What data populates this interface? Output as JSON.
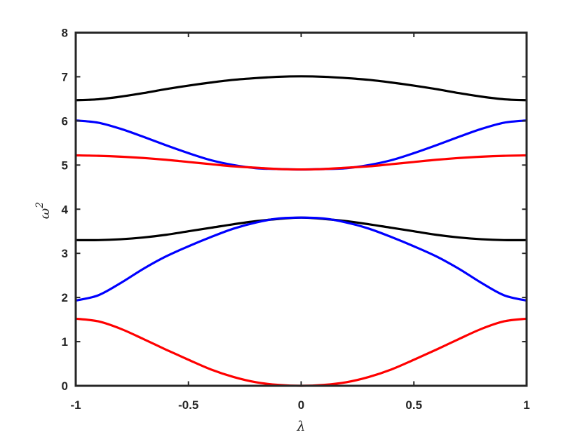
{
  "chart_data": {
    "type": "line",
    "title": "",
    "xlabel": "λ",
    "ylabel": "ω",
    "ylabel_superscript": "2",
    "xlim": [
      -1,
      1
    ],
    "ylim": [
      0,
      8
    ],
    "x_ticks": [
      -1,
      -0.5,
      0,
      0.5,
      1
    ],
    "x_tick_labels": [
      "-1",
      "-0.5",
      "0",
      "0.5",
      "1"
    ],
    "y_ticks": [
      0,
      1,
      2,
      3,
      4,
      5,
      6,
      7,
      8
    ],
    "y_tick_labels": [
      "0",
      "1",
      "2",
      "3",
      "4",
      "5",
      "6",
      "7",
      "8"
    ],
    "grid": false,
    "legend": "none",
    "x": [
      -1,
      -0.9,
      -0.8,
      -0.7,
      -0.6,
      -0.5,
      -0.4,
      -0.3,
      -0.2,
      -0.1,
      0,
      0.1,
      0.2,
      0.3,
      0.4,
      0.5,
      0.6,
      0.7,
      0.8,
      0.9,
      1
    ],
    "series": [
      {
        "color": "#000000",
        "values": [
          6.47,
          6.49,
          6.55,
          6.63,
          6.72,
          6.8,
          6.87,
          6.93,
          6.97,
          7.0,
          7.01,
          7.0,
          6.97,
          6.93,
          6.87,
          6.8,
          6.72,
          6.63,
          6.55,
          6.49,
          6.47
        ]
      },
      {
        "color": "#0000ff",
        "values": [
          6.01,
          5.96,
          5.82,
          5.64,
          5.45,
          5.27,
          5.11,
          5.0,
          4.93,
          4.91,
          4.9,
          4.91,
          4.93,
          5.0,
          5.11,
          5.27,
          5.45,
          5.64,
          5.82,
          5.96,
          6.01
        ]
      },
      {
        "color": "#ff0000",
        "values": [
          5.22,
          5.21,
          5.19,
          5.16,
          5.12,
          5.07,
          5.02,
          4.97,
          4.94,
          4.91,
          4.9,
          4.91,
          4.94,
          4.97,
          5.02,
          5.07,
          5.12,
          5.16,
          5.19,
          5.21,
          5.22
        ]
      },
      {
        "color": "#000000",
        "values": [
          3.3,
          3.3,
          3.32,
          3.36,
          3.42,
          3.5,
          3.58,
          3.66,
          3.73,
          3.78,
          3.81,
          3.78,
          3.73,
          3.66,
          3.58,
          3.5,
          3.42,
          3.36,
          3.32,
          3.3,
          3.3
        ]
      },
      {
        "color": "#0000ff",
        "values": [
          1.93,
          2.05,
          2.33,
          2.65,
          2.93,
          3.16,
          3.37,
          3.56,
          3.7,
          3.79,
          3.81,
          3.79,
          3.7,
          3.56,
          3.37,
          3.16,
          2.93,
          2.65,
          2.33,
          2.05,
          1.93
        ]
      },
      {
        "color": "#ff0000",
        "values": [
          1.52,
          1.46,
          1.29,
          1.06,
          0.82,
          0.59,
          0.37,
          0.2,
          0.08,
          0.02,
          0.0,
          0.02,
          0.08,
          0.2,
          0.37,
          0.59,
          0.82,
          1.06,
          1.29,
          1.46,
          1.52
        ]
      }
    ]
  }
}
